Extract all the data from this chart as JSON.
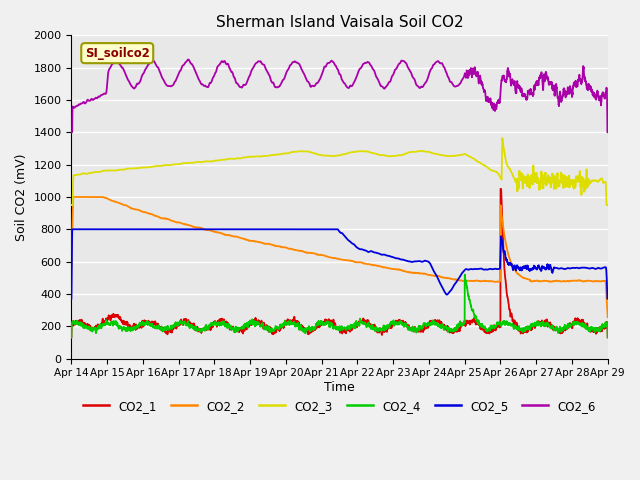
{
  "title": "Sherman Island Vaisala Soil CO2",
  "ylabel": "Soil CO2 (mV)",
  "xlabel": "Time",
  "watermark": "SI_soilco2",
  "xlim": [
    0,
    360
  ],
  "ylim": [
    0,
    2000
  ],
  "yticks": [
    0,
    200,
    400,
    600,
    800,
    1000,
    1200,
    1400,
    1600,
    1800,
    2000
  ],
  "xtick_labels": [
    "Apr 14",
    "Apr 15",
    "Apr 16",
    "Apr 17",
    "Apr 18",
    "Apr 19",
    "Apr 20",
    "Apr 21",
    "Apr 22",
    "Apr 23",
    "Apr 24",
    "Apr 25",
    "Apr 26",
    "Apr 27",
    "Apr 28",
    "Apr 29"
  ],
  "colors": {
    "CO2_1": "#dd0000",
    "CO2_2": "#ff8800",
    "CO2_3": "#dddd00",
    "CO2_4": "#00cc00",
    "CO2_5": "#0000dd",
    "CO2_6": "#aa00aa"
  },
  "background_color": "#e8e8e8",
  "grid_color": "#ffffff",
  "fig_bg": "#f0f0f0"
}
